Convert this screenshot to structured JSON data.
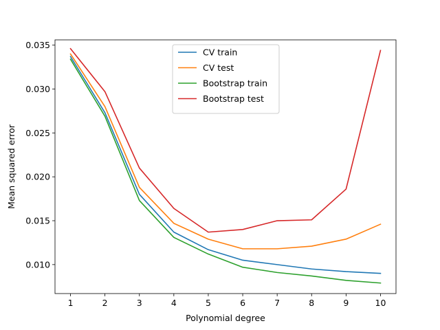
{
  "chart_data": {
    "type": "line",
    "xlabel": "Polynomial degree",
    "ylabel": "Mean squared error",
    "xlim": [
      0.55,
      10.45
    ],
    "ylim": [
      0.0067,
      0.0356
    ],
    "xticks": [
      1,
      2,
      3,
      4,
      5,
      6,
      7,
      8,
      9,
      10
    ],
    "yticks": [
      0.01,
      0.015,
      0.02,
      0.025,
      0.03,
      0.035
    ],
    "ytick_labels": [
      "0.010",
      "0.015",
      "0.020",
      "0.025",
      "0.030",
      "0.035"
    ],
    "x": [
      1,
      2,
      3,
      4,
      5,
      6,
      7,
      8,
      9,
      10
    ],
    "grid": false,
    "legend_position": "top-center",
    "series": [
      {
        "name": "CV train",
        "color": "#1f77b4",
        "values": [
          0.0337,
          0.0273,
          0.018,
          0.0137,
          0.0117,
          0.0105,
          0.01,
          0.0095,
          0.0092,
          0.009
        ]
      },
      {
        "name": "CV test",
        "color": "#ff7f0e",
        "values": [
          0.034,
          0.028,
          0.0188,
          0.0147,
          0.0129,
          0.0118,
          0.0118,
          0.0121,
          0.0129,
          0.0146
        ]
      },
      {
        "name": "Bootstrap train",
        "color": "#2ca02c",
        "values": [
          0.0334,
          0.0269,
          0.0173,
          0.0131,
          0.0112,
          0.0097,
          0.0091,
          0.0087,
          0.0082,
          0.0079
        ]
      },
      {
        "name": "Bootstrap test",
        "color": "#d62728",
        "values": [
          0.0346,
          0.0297,
          0.021,
          0.0164,
          0.0137,
          0.014,
          0.015,
          0.0151,
          0.0186,
          0.0344
        ]
      }
    ]
  }
}
